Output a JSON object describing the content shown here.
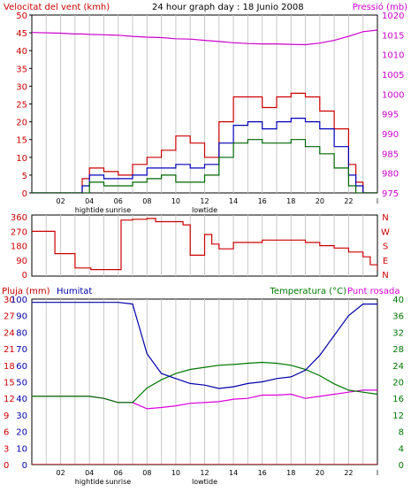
{
  "colors": {
    "wind": "#cc0000",
    "gust": "#cc0000",
    "wind_avg": "#0000bb",
    "wind_min": "#006600",
    "pressure": "#cc00cc",
    "direction": "#cc0000",
    "humidity": "#0000aa",
    "temperature": "#007700",
    "dewpoint": "#dd00dd",
    "rain": "#cc0000",
    "grid": "#c8c8c8"
  },
  "chart_data": [
    {
      "type": "line",
      "title": "24 hour graph day : 18 Junio 2008",
      "ylabel": "Velocitat del vent (kmh)",
      "y2label": "Pressió (mb)",
      "ylim": [
        0,
        50
      ],
      "y2lim": [
        975,
        1020
      ],
      "yticks": [
        "0",
        "5",
        "10",
        "15",
        "20",
        "25",
        "30",
        "35",
        "40",
        "45",
        "50"
      ],
      "y2ticks": [
        "975",
        "980",
        "985",
        "990",
        "995",
        "1000",
        "1005",
        "1010",
        "1015",
        "1020"
      ],
      "xticks": [
        "02",
        "04",
        "06",
        "08",
        "10",
        "12",
        "14",
        "16",
        "18",
        "20",
        "22"
      ],
      "xnotes": [
        "hightide",
        "sunrise",
        "lowtide"
      ],
      "x": [
        0,
        2,
        3,
        3.5,
        4,
        5,
        6,
        7,
        8,
        9,
        10,
        11,
        12,
        13,
        14,
        15,
        16,
        17,
        18,
        19,
        20,
        21,
        22,
        22.5,
        23,
        24
      ],
      "series": [
        {
          "key": "gust",
          "values": [
            0,
            0,
            0,
            4,
            7,
            6,
            5,
            8,
            10,
            12,
            16,
            14,
            10,
            20,
            27,
            27,
            24,
            27,
            28,
            27,
            23,
            18,
            8,
            3,
            0,
            0
          ]
        },
        {
          "key": "avg",
          "values": [
            0,
            0,
            0,
            2,
            5,
            4,
            4,
            5,
            7,
            7,
            8,
            7,
            8,
            14,
            19,
            20,
            18,
            20,
            21,
            20,
            18,
            13,
            5,
            2,
            0,
            0
          ]
        },
        {
          "key": "min",
          "values": [
            0,
            0,
            0,
            0,
            3,
            2,
            2,
            3,
            4,
            5,
            3,
            3,
            5,
            10,
            14,
            15,
            14,
            14,
            15,
            13,
            11,
            7,
            2,
            0,
            0,
            0
          ]
        },
        {
          "key": "pressure",
          "values": [
            1015.6,
            1015.4,
            1015.2,
            1015.2,
            1015.1,
            1015.0,
            1014.9,
            1014.6,
            1014.4,
            1014.3,
            1014.0,
            1013.9,
            1013.6,
            1013.3,
            1013.0,
            1012.8,
            1012.7,
            1012.7,
            1012.6,
            1012.5,
            1012.9,
            1013.6,
            1014.6,
            1015.2,
            1015.8,
            1016.2
          ]
        }
      ]
    },
    {
      "type": "line",
      "ylim": [
        0,
        360
      ],
      "yticks": [
        "0",
        "90",
        "180",
        "270",
        "360"
      ],
      "rlabels": [
        "N",
        "W",
        "S",
        "E",
        "N"
      ],
      "x": [
        0,
        1.5,
        1.6,
        2.5,
        3,
        3.5,
        4,
        4.1,
        5.8,
        6.2,
        6.4,
        7,
        8,
        8.4,
        8.6,
        10.5,
        11,
        12,
        12.5,
        13,
        14,
        16,
        18,
        19,
        20,
        21,
        22,
        23,
        23.5,
        24
      ],
      "values": [
        270,
        270,
        130,
        130,
        40,
        40,
        40,
        30,
        30,
        340,
        340,
        345,
        350,
        350,
        330,
        310,
        120,
        250,
        190,
        160,
        200,
        215,
        215,
        200,
        180,
        165,
        140,
        110,
        60,
        25
      ]
    },
    {
      "type": "line",
      "ylabel": "Pluja (mm)",
      "ylabel2": "Humitat",
      "y2label": "Temperatura (°C)",
      "y2label2": "Punt rosada",
      "ylim": [
        0,
        30
      ],
      "ylim_humidity": [
        0,
        100
      ],
      "y2lim": [
        0,
        40
      ],
      "yticks_pluja": [
        "0",
        "3",
        "6",
        "9",
        "12",
        "15",
        "18",
        "21",
        "24",
        "27",
        "30"
      ],
      "yticks_humitat": [
        "0",
        "10",
        "20",
        "30",
        "40",
        "50",
        "60",
        "70",
        "80",
        "90",
        "100"
      ],
      "y2ticks": [
        "0",
        "4",
        "8",
        "12",
        "16",
        "20",
        "24",
        "28",
        "32",
        "36",
        "40"
      ],
      "x": [
        0,
        2,
        4,
        5,
        6,
        7,
        8,
        9,
        10,
        11,
        12,
        13,
        14,
        15,
        16,
        17,
        18,
        19,
        20,
        21,
        22,
        23,
        24
      ],
      "series": [
        {
          "key": "humidity",
          "values": [
            98,
            98,
            98,
            98,
            98,
            97,
            67,
            55,
            52,
            49,
            48,
            46,
            47,
            49,
            50,
            52,
            53,
            57,
            66,
            78,
            90,
            97,
            97
          ]
        },
        {
          "key": "temperature",
          "values": [
            16.5,
            16.5,
            16.5,
            16.0,
            15.0,
            15.0,
            18.5,
            20.5,
            22.0,
            23.0,
            23.5,
            24.0,
            24.2,
            24.5,
            24.7,
            24.5,
            24.0,
            23.0,
            21.5,
            19.5,
            18.0,
            17.5,
            17.0
          ]
        },
        {
          "key": "dewpoint",
          "values": [
            16.5,
            16.5,
            16.5,
            16.0,
            15.0,
            15.0,
            13.5,
            13.8,
            14.2,
            14.8,
            15.0,
            15.2,
            15.8,
            16.0,
            16.8,
            16.8,
            17.0,
            16.0,
            16.5,
            17.0,
            17.5,
            18.0,
            18.0
          ]
        },
        {
          "key": "rain",
          "values": [
            0,
            0,
            0,
            0,
            0,
            0,
            0,
            0,
            0,
            0,
            0,
            0,
            0,
            0,
            0,
            0,
            0,
            0,
            0,
            0,
            0,
            0,
            0
          ]
        }
      ]
    }
  ]
}
